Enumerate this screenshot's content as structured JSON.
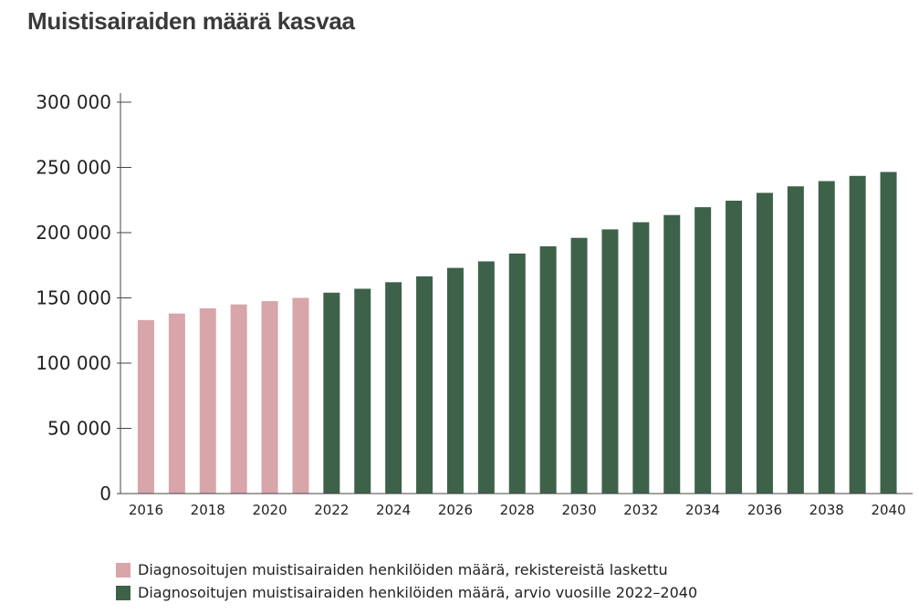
{
  "colors": {
    "registered": "#d8a5aa",
    "forecast": "#3e614a",
    "axis": "#444444",
    "text": "#222222"
  },
  "chart_data": {
    "type": "bar",
    "title": "Muistisairaiden määrä kasvaa",
    "xlabel": "",
    "ylabel": "",
    "ylim": [
      0,
      300000
    ],
    "yticks": [
      0,
      50000,
      100000,
      150000,
      200000,
      250000,
      300000
    ],
    "ytick_labels": [
      "0",
      "50 000",
      "100 000",
      "150 000",
      "200 000",
      "250 000",
      "300 000"
    ],
    "categories": [
      2016,
      2017,
      2018,
      2019,
      2020,
      2021,
      2022,
      2023,
      2024,
      2025,
      2026,
      2027,
      2028,
      2029,
      2030,
      2031,
      2032,
      2033,
      2034,
      2035,
      2036,
      2037,
      2038,
      2039,
      2040
    ],
    "xtick_labels": [
      "2016",
      "2018",
      "2020",
      "2022",
      "2024",
      "2026",
      "2028",
      "2030",
      "2032",
      "2034",
      "2036",
      "2038",
      "2040"
    ],
    "series": [
      {
        "name": "Diagnosoitujen muistisairaiden henkilöiden määrä, rekistereistä laskettu",
        "color_key": "registered",
        "values": [
          133000,
          138000,
          142000,
          145000,
          147500,
          150000,
          null,
          null,
          null,
          null,
          null,
          null,
          null,
          null,
          null,
          null,
          null,
          null,
          null,
          null,
          null,
          null,
          null,
          null,
          null
        ]
      },
      {
        "name": "Diagnosoitujen muistisairaiden henkilöiden määrä, arvio vuosille 2022–2040",
        "color_key": "forecast",
        "values": [
          null,
          null,
          null,
          null,
          null,
          null,
          154000,
          157000,
          162000,
          166500,
          173000,
          178000,
          184000,
          189500,
          196000,
          202500,
          208000,
          213500,
          219500,
          224500,
          230500,
          235500,
          239500,
          243500,
          246500
        ]
      }
    ],
    "legend_position": "bottom-left",
    "grid": false
  }
}
